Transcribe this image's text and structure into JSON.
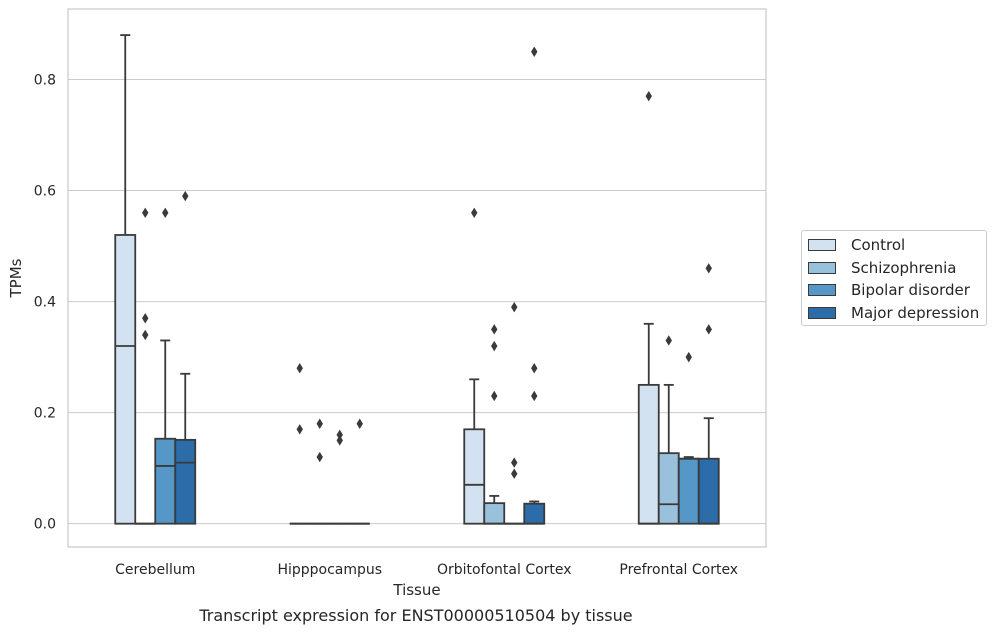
{
  "caption": "Transcript expression for ENST00000510504 by tissue",
  "chart_data": {
    "type": "box",
    "xlabel": "Tissue",
    "ylabel": "TPMs",
    "ylim": [
      -0.042,
      0.927
    ],
    "yticks": [
      0.0,
      0.2,
      0.4,
      0.6,
      0.8
    ],
    "ytick_labels": [
      "0.0",
      "0.2",
      "0.4",
      "0.6",
      "0.8"
    ],
    "grid": "horizontal",
    "legend_position": "right",
    "categories": [
      "Cerebellum",
      "Hipppocampus",
      "Orbitofontal Cortex",
      "Prefrontal Cortex"
    ],
    "series": [
      {
        "name": "Control",
        "color": "#d2e2f1",
        "boxes": [
          {
            "q1": 0,
            "median": 0.32,
            "q3": 0.52,
            "whisker_low": 0,
            "whisker_high": 0.88,
            "outliers": []
          },
          {
            "q1": 0,
            "median": 0,
            "q3": 0,
            "whisker_low": 0,
            "whisker_high": 0,
            "outliers": [
              0.28,
              0.17
            ]
          },
          {
            "q1": 0,
            "median": 0.07,
            "q3": 0.17,
            "whisker_low": 0,
            "whisker_high": 0.26,
            "outliers": [
              0.56
            ]
          },
          {
            "q1": 0,
            "median": 0,
            "q3": 0.25,
            "whisker_low": 0,
            "whisker_high": 0.36,
            "outliers": [
              0.77
            ]
          }
        ]
      },
      {
        "name": "Schizophrenia",
        "color": "#9ac1dc",
        "boxes": [
          {
            "q1": 0,
            "median": 0,
            "q3": 0,
            "whisker_low": 0,
            "whisker_high": 0,
            "outliers": [
              0.56,
              0.37,
              0.34
            ]
          },
          {
            "q1": 0,
            "median": 0,
            "q3": 0,
            "whisker_low": 0,
            "whisker_high": 0,
            "outliers": [
              0.18,
              0.12
            ]
          },
          {
            "q1": 0,
            "median": 0,
            "q3": 0.037,
            "whisker_low": 0,
            "whisker_high": 0.05,
            "outliers": [
              0.35,
              0.32,
              0.23
            ]
          },
          {
            "q1": 0,
            "median": 0.035,
            "q3": 0.127,
            "whisker_low": 0,
            "whisker_high": 0.25,
            "outliers": [
              0.33
            ]
          }
        ]
      },
      {
        "name": "Bipolar disorder",
        "color": "#5597c6",
        "boxes": [
          {
            "q1": 0,
            "median": 0.104,
            "q3": 0.153,
            "whisker_low": 0,
            "whisker_high": 0.33,
            "outliers": [
              0.56
            ]
          },
          {
            "q1": 0,
            "median": 0,
            "q3": 0,
            "whisker_low": 0,
            "whisker_high": 0,
            "outliers": [
              0.16,
              0.15
            ]
          },
          {
            "q1": 0,
            "median": 0,
            "q3": 0,
            "whisker_low": 0,
            "whisker_high": 0,
            "outliers": [
              0.39,
              0.11,
              0.09
            ]
          },
          {
            "q1": 0,
            "median": 0.117,
            "q3": 0.117,
            "whisker_low": 0,
            "whisker_high": 0.12,
            "outliers": [
              0.3
            ]
          }
        ]
      },
      {
        "name": "Major depression",
        "color": "#2b6ca9",
        "boxes": [
          {
            "q1": 0,
            "median": 0.11,
            "q3": 0.151,
            "whisker_low": 0,
            "whisker_high": 0.27,
            "outliers": [
              0.59
            ]
          },
          {
            "q1": 0,
            "median": 0,
            "q3": 0,
            "whisker_low": 0,
            "whisker_high": 0,
            "outliers": [
              0.18
            ]
          },
          {
            "q1": 0,
            "median": 0,
            "q3": 0.036,
            "whisker_low": 0,
            "whisker_high": 0.04,
            "outliers": [
              0.85,
              0.28,
              0.23
            ]
          },
          {
            "q1": 0,
            "median": 0,
            "q3": 0.117,
            "whisker_low": 0,
            "whisker_high": 0.19,
            "outliers": [
              0.46,
              0.35
            ]
          }
        ]
      }
    ]
  }
}
